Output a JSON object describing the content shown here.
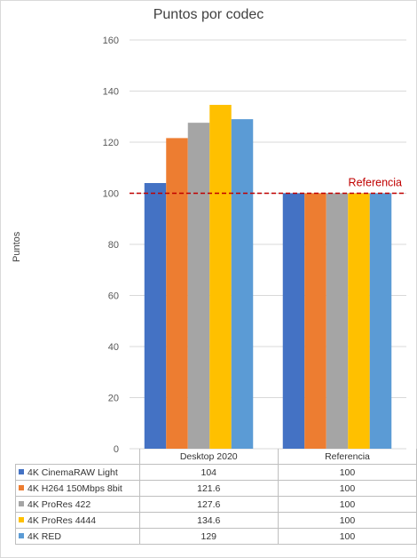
{
  "chart_data": {
    "type": "bar",
    "title": "Puntos por codec",
    "ylabel": "Puntos",
    "ylim": [
      0,
      160
    ],
    "yticks": [
      0,
      20,
      40,
      60,
      80,
      100,
      120,
      140,
      160
    ],
    "grid": true,
    "categories": [
      "Desktop 2020",
      "Referencia"
    ],
    "series": [
      {
        "name": "4K CinemaRAW Light",
        "color": "#4472c4",
        "values": [
          104,
          100
        ],
        "labels": [
          "104",
          "100"
        ]
      },
      {
        "name": "4K H264 150Mbps 8bit",
        "color": "#ed7d31",
        "values": [
          121.6,
          100
        ],
        "labels": [
          "121.6",
          "100"
        ]
      },
      {
        "name": "4K ProRes 422",
        "color": "#a5a5a5",
        "values": [
          127.6,
          100
        ],
        "labels": [
          "127.6",
          "100"
        ]
      },
      {
        "name": "4K ProRes 4444",
        "color": "#ffc000",
        "values": [
          134.6,
          100
        ],
        "labels": [
          "134.6",
          "100"
        ]
      },
      {
        "name": "4K RED",
        "color": "#5b9bd5",
        "values": [
          129,
          100
        ],
        "labels": [
          "129",
          "100"
        ]
      }
    ],
    "reference_line": {
      "value": 100,
      "label": "Referencia",
      "color": "#c00000"
    },
    "legend": "data-table-bottom"
  }
}
